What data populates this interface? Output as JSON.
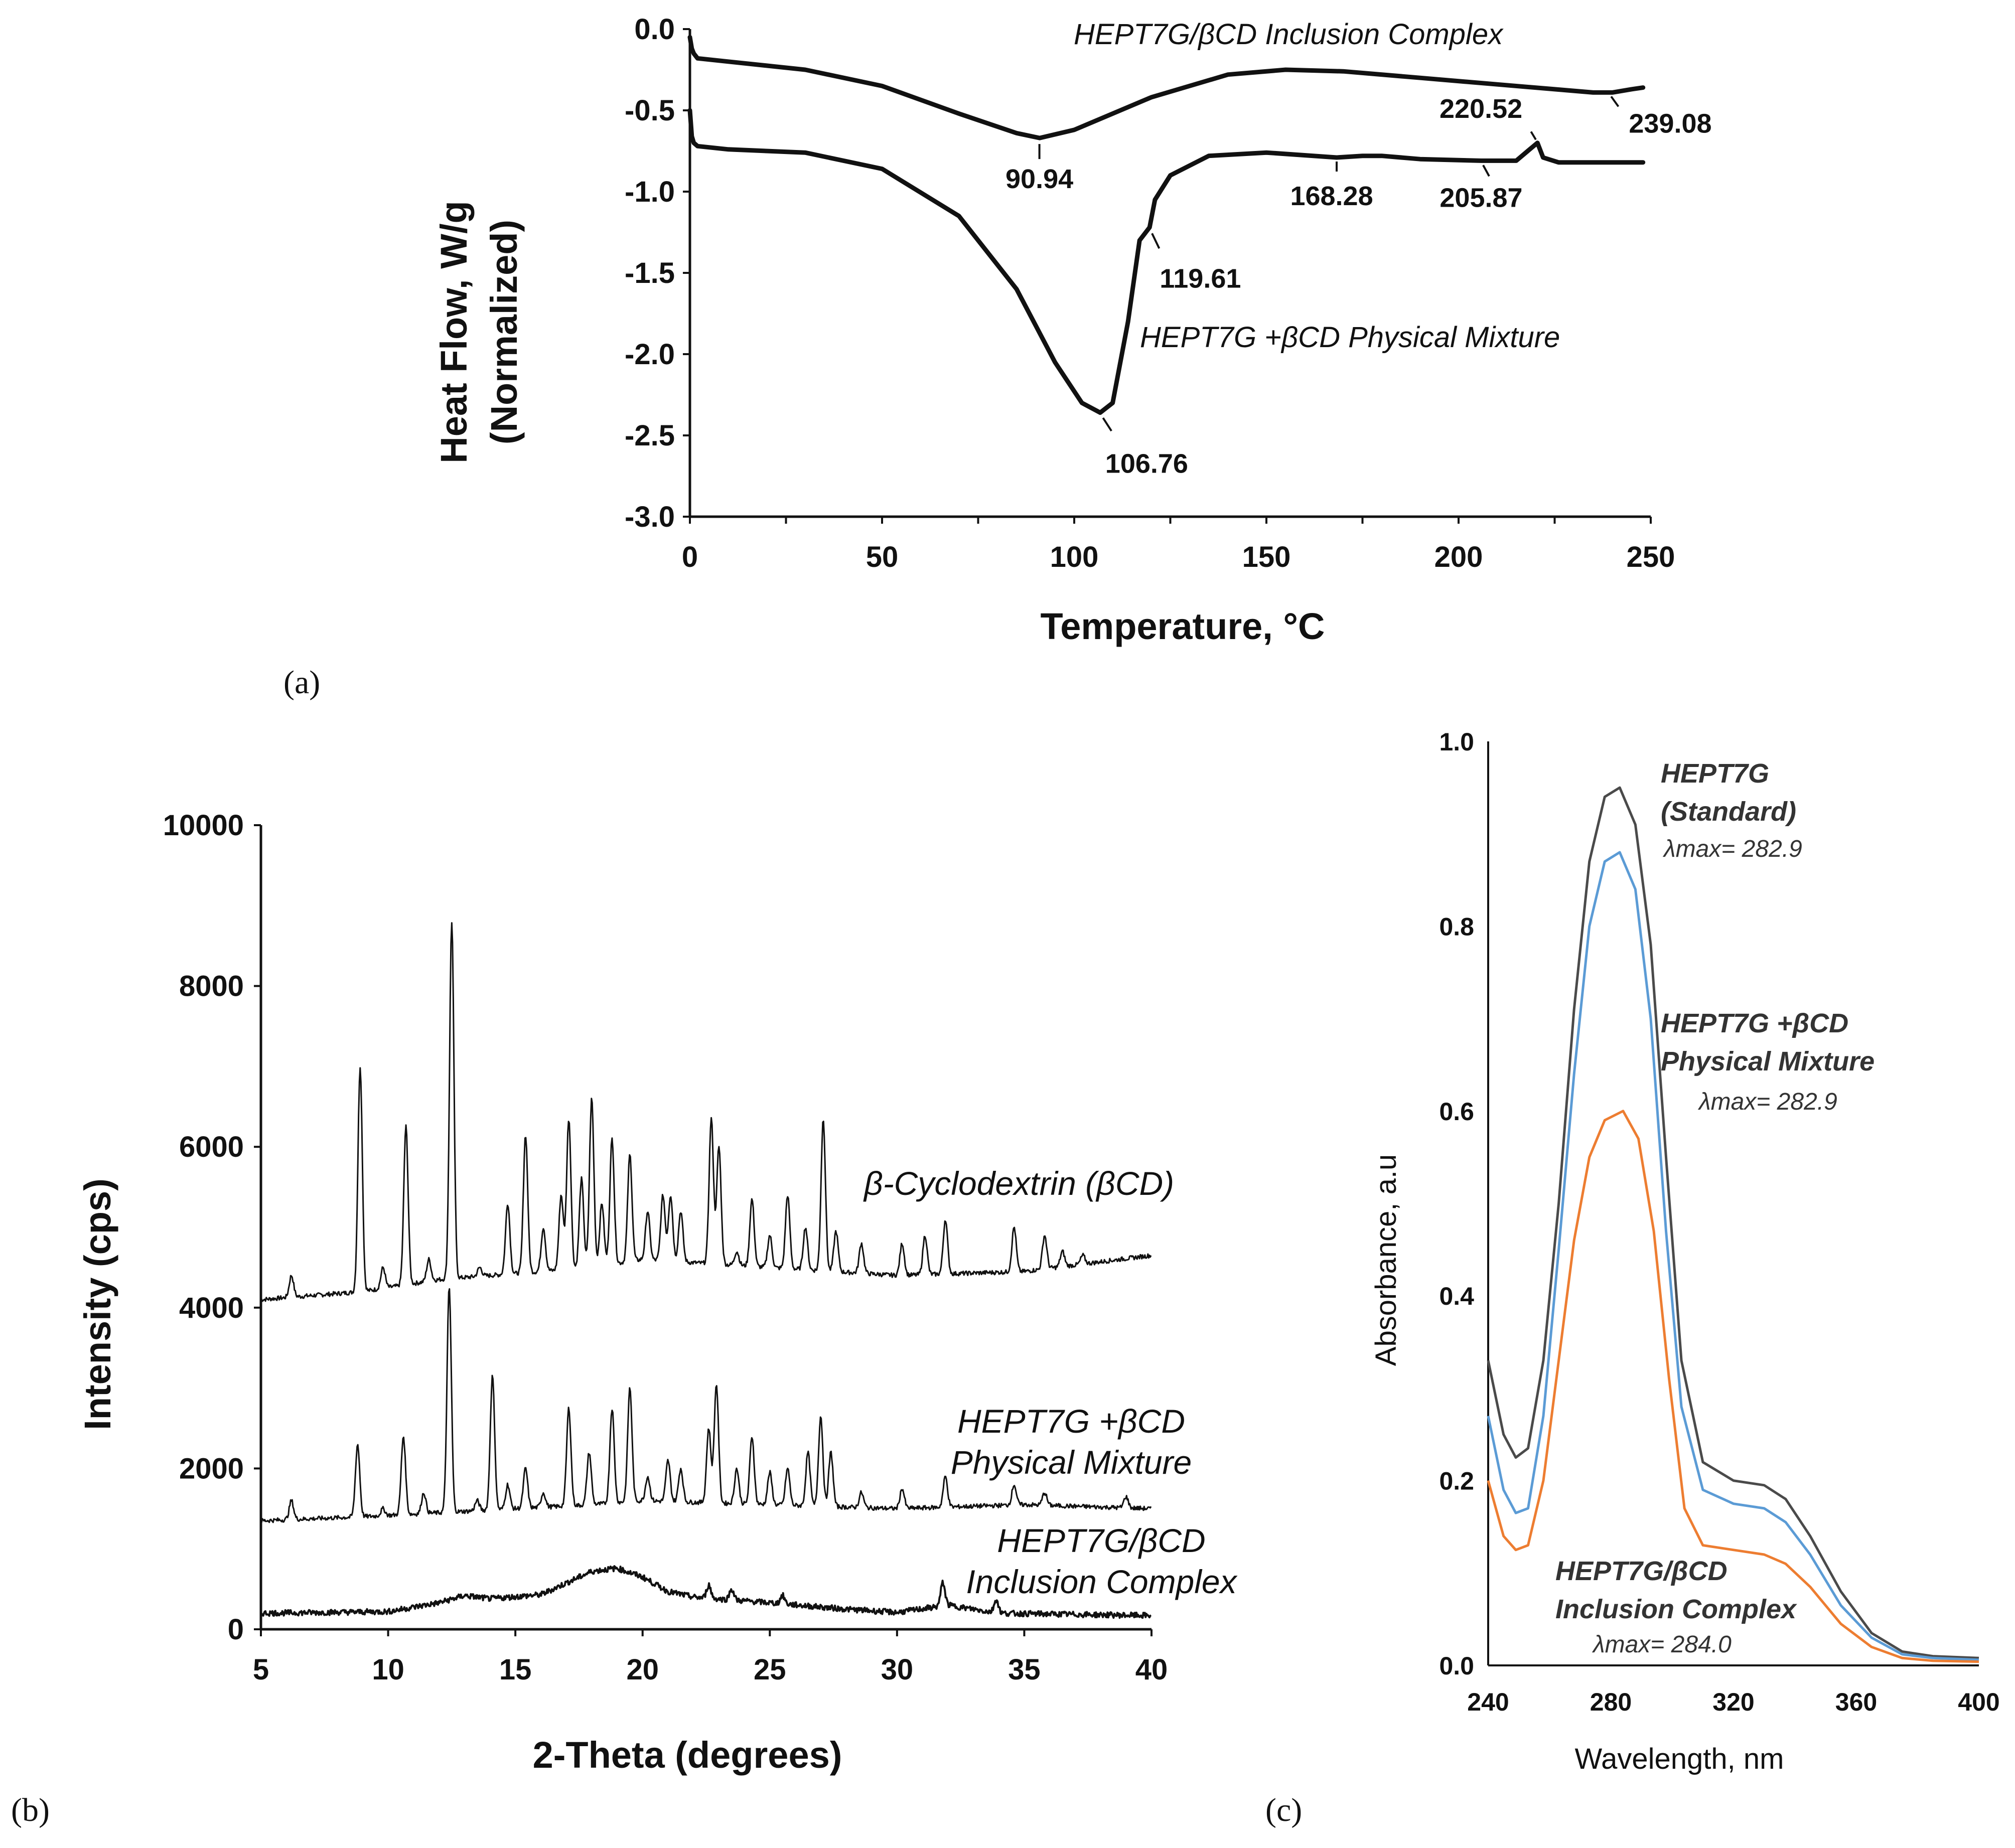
{
  "panels": {
    "a": "(a)",
    "b": "(b)",
    "c": "(c)"
  },
  "chart_data": [
    {
      "id": "a",
      "type": "line",
      "title": "",
      "xlabel": "Temperature, °C",
      "ylabel_lines": [
        "Heat Flow, W/g",
        "(Normalized)"
      ],
      "xlim": [
        0,
        250
      ],
      "ylim": [
        -3.0,
        0.0
      ],
      "xticks": [
        0,
        50,
        100,
        150,
        200,
        250
      ],
      "yticks": [
        0.0,
        -0.5,
        -1.0,
        -1.5,
        -2.0,
        -2.5,
        -3.0
      ],
      "xtick_labels": [
        "0",
        "50",
        "100",
        "150",
        "200",
        "250"
      ],
      "ytick_labels": [
        "0.0",
        "-0.5",
        "-1.0",
        "-1.5",
        "-2.0",
        "-2.5",
        "-3.0"
      ],
      "series": [
        {
          "name": "HEPT7G/βCD Inclusion Complex",
          "x": [
            0,
            0.5,
            1,
            2,
            10,
            30,
            50,
            70,
            85,
            91,
            100,
            120,
            140,
            155,
            170,
            190,
            210,
            225,
            235,
            240,
            245,
            248
          ],
          "y": [
            -0.05,
            -0.12,
            -0.15,
            -0.18,
            -0.2,
            -0.25,
            -0.35,
            -0.52,
            -0.64,
            -0.67,
            -0.62,
            -0.42,
            -0.28,
            -0.25,
            -0.26,
            -0.3,
            -0.34,
            -0.37,
            -0.39,
            -0.39,
            -0.37,
            -0.36
          ]
        },
        {
          "name": "HEPT7G + βCD Physical Mixture",
          "x": [
            0,
            0.5,
            1,
            2,
            10,
            30,
            50,
            70,
            85,
            95,
            102,
            106.76,
            110,
            114,
            117,
            119.61,
            121,
            125,
            135,
            150,
            168.28,
            175,
            180,
            190,
            205.87,
            215,
            218,
            220.52,
            222,
            226,
            235,
            248
          ],
          "y": [
            -0.5,
            -0.66,
            -0.7,
            -0.72,
            -0.74,
            -0.76,
            -0.86,
            -1.15,
            -1.6,
            -2.05,
            -2.3,
            -2.36,
            -2.3,
            -1.8,
            -1.3,
            -1.22,
            -1.05,
            -0.9,
            -0.78,
            -0.76,
            -0.79,
            -0.78,
            -0.78,
            -0.8,
            -0.81,
            -0.81,
            -0.75,
            -0.7,
            -0.79,
            -0.82,
            -0.82,
            -0.82
          ]
        }
      ],
      "annotations": [
        {
          "x": 90.94,
          "y": -0.67,
          "label": "90.94"
        },
        {
          "x": 106.76,
          "y": -2.36,
          "label": "106.76"
        },
        {
          "x": 119.61,
          "y": -1.22,
          "label": "119.61"
        },
        {
          "x": 168.28,
          "y": -0.79,
          "label": "168.28"
        },
        {
          "x": 205.87,
          "y": -0.81,
          "label": "205.87"
        },
        {
          "x": 220.52,
          "y": -0.7,
          "label": "220.52"
        },
        {
          "x": 239.08,
          "y": -0.39,
          "label": "239.08"
        }
      ],
      "series_labels": [
        "HEPT7G/βCD Inclusion Complex",
        "HEPT7G +βCD Physical Mixture"
      ]
    },
    {
      "id": "b",
      "type": "line",
      "title": "",
      "xlabel": "2-Theta (degrees)",
      "ylabel": "Intensity (cps)",
      "xlim": [
        5,
        40
      ],
      "ylim": [
        0,
        10000
      ],
      "xticks": [
        5,
        10,
        15,
        20,
        25,
        30,
        35,
        40
      ],
      "yticks": [
        0,
        2000,
        4000,
        6000,
        8000,
        10000
      ],
      "xtick_labels": [
        "5",
        "10",
        "15",
        "20",
        "25",
        "30",
        "35",
        "40"
      ],
      "ytick_labels": [
        "0",
        "2000",
        "4000",
        "6000",
        "8000",
        "10000"
      ],
      "series": [
        {
          "name": "β-Cyclodextrin (βCD)",
          "baseline": [
            [
              5,
              4100
            ],
            [
              9,
              4200
            ],
            [
              12,
              4350
            ],
            [
              18,
              4500
            ],
            [
              20,
              4600
            ],
            [
              25,
              4500
            ],
            [
              30,
              4400
            ],
            [
              35,
              4450
            ],
            [
              40,
              4650
            ]
          ],
          "peaks": [
            [
              6.2,
              4400
            ],
            [
              8.9,
              7000
            ],
            [
              9.8,
              4500
            ],
            [
              10.7,
              6250
            ],
            [
              11.6,
              4600
            ],
            [
              12.5,
              8800
            ],
            [
              13.6,
              4500
            ],
            [
              14.7,
              5300
            ],
            [
              15.4,
              6150
            ],
            [
              16.1,
              5000
            ],
            [
              16.8,
              5400
            ],
            [
              17.1,
              6350
            ],
            [
              17.6,
              5600
            ],
            [
              18.0,
              6600
            ],
            [
              18.4,
              5300
            ],
            [
              18.8,
              6100
            ],
            [
              19.5,
              5900
            ],
            [
              20.2,
              5200
            ],
            [
              20.8,
              5400
            ],
            [
              21.1,
              5400
            ],
            [
              21.5,
              5200
            ],
            [
              22.7,
              6350
            ],
            [
              23.0,
              6000
            ],
            [
              23.7,
              4700
            ],
            [
              24.3,
              5350
            ],
            [
              25.0,
              4900
            ],
            [
              25.7,
              5400
            ],
            [
              26.4,
              5000
            ],
            [
              27.1,
              6350
            ],
            [
              27.6,
              4950
            ],
            [
              28.6,
              4800
            ],
            [
              30.2,
              4800
            ],
            [
              31.1,
              4900
            ],
            [
              31.9,
              5100
            ],
            [
              34.6,
              5000
            ],
            [
              35.8,
              4900
            ],
            [
              36.5,
              4700
            ],
            [
              37.3,
              4650
            ]
          ]
        },
        {
          "name": "HEPT7G +βCD Physical Mixture",
          "baseline": [
            [
              5,
              1350
            ],
            [
              9,
              1400
            ],
            [
              12,
              1450
            ],
            [
              18,
              1550
            ],
            [
              20,
              1600
            ],
            [
              25,
              1550
            ],
            [
              30,
              1500
            ],
            [
              35,
              1550
            ],
            [
              40,
              1500
            ]
          ],
          "peaks": [
            [
              6.2,
              1600
            ],
            [
              8.8,
              2300
            ],
            [
              9.8,
              1500
            ],
            [
              10.6,
              2400
            ],
            [
              11.4,
              1700
            ],
            [
              12.4,
              4250
            ],
            [
              13.5,
              1600
            ],
            [
              14.1,
              3150
            ],
            [
              14.7,
              1800
            ],
            [
              15.4,
              2000
            ],
            [
              16.1,
              1700
            ],
            [
              17.1,
              2750
            ],
            [
              17.9,
              2200
            ],
            [
              18.8,
              2750
            ],
            [
              19.5,
              3000
            ],
            [
              20.2,
              1900
            ],
            [
              21.0,
              2100
            ],
            [
              21.5,
              2000
            ],
            [
              22.6,
              2500
            ],
            [
              22.9,
              3050
            ],
            [
              23.7,
              2000
            ],
            [
              24.3,
              2400
            ],
            [
              25.0,
              1950
            ],
            [
              25.7,
              2000
            ],
            [
              26.5,
              2200
            ],
            [
              27.0,
              2650
            ],
            [
              27.4,
              2200
            ],
            [
              28.6,
              1700
            ],
            [
              30.2,
              1750
            ],
            [
              31.9,
              1900
            ],
            [
              34.6,
              1800
            ],
            [
              35.8,
              1700
            ],
            [
              39.0,
              1650
            ]
          ]
        },
        {
          "name": "HEPT7G/βCD Inclusion Complex",
          "baseline": [
            [
              5,
              200
            ],
            [
              10,
              220
            ],
            [
              12,
              330
            ],
            [
              13,
              420
            ],
            [
              14,
              380
            ],
            [
              16,
              430
            ],
            [
              18,
              720
            ],
            [
              19,
              760
            ],
            [
              20,
              650
            ],
            [
              21,
              470
            ],
            [
              22,
              400
            ],
            [
              25,
              330
            ],
            [
              28,
              250
            ],
            [
              30,
              210
            ],
            [
              32,
              300
            ],
            [
              34,
              200
            ],
            [
              40,
              170
            ]
          ],
          "peaks": [
            [
              22.6,
              550
            ],
            [
              23.5,
              500
            ],
            [
              25.5,
              420
            ],
            [
              31.8,
              580
            ],
            [
              33.9,
              370
            ]
          ]
        }
      ],
      "series_labels": [
        "β-Cyclodextrin (βCD)",
        "HEPT7G +βCD",
        "Physical Mixture",
        "HEPT7G/βCD",
        "Inclusion Complex"
      ]
    },
    {
      "id": "c",
      "type": "line",
      "title": "",
      "xlabel": "Wavelength, nm",
      "ylabel": "Absorbance, a.u",
      "xlim": [
        240,
        400
      ],
      "ylim": [
        0.0,
        1.0
      ],
      "xticks": [
        240,
        280,
        320,
        360,
        400
      ],
      "yticks": [
        0.0,
        0.2,
        0.4,
        0.6,
        0.8,
        1.0
      ],
      "xtick_labels": [
        "240",
        "280",
        "320",
        "360",
        "400"
      ],
      "ytick_labels": [
        "0.0",
        "0.2",
        "0.4",
        "0.6",
        "0.8",
        "1.0"
      ],
      "series": [
        {
          "name": "HEPT7G (Standard)",
          "color": "#4a4a4a",
          "lambda_max": 282.9,
          "x": [
            240,
            245,
            249,
            253,
            258,
            263,
            268,
            273,
            278,
            282.9,
            288,
            293,
            298,
            303,
            310,
            320,
            330,
            337,
            345,
            355,
            365,
            375,
            385,
            400
          ],
          "y": [
            0.33,
            0.25,
            0.225,
            0.235,
            0.33,
            0.5,
            0.71,
            0.87,
            0.94,
            0.95,
            0.91,
            0.78,
            0.55,
            0.33,
            0.22,
            0.2,
            0.195,
            0.18,
            0.14,
            0.08,
            0.035,
            0.015,
            0.01,
            0.008
          ]
        },
        {
          "name": "HEPT7G +βCD Physical Mixture",
          "color": "#5b9bd5",
          "lambda_max": 282.9,
          "x": [
            240,
            245,
            249,
            253,
            258,
            263,
            268,
            273,
            278,
            282.9,
            288,
            293,
            298,
            303,
            310,
            320,
            330,
            337,
            345,
            355,
            365,
            375,
            385,
            400
          ],
          "y": [
            0.27,
            0.19,
            0.165,
            0.17,
            0.27,
            0.45,
            0.64,
            0.8,
            0.87,
            0.88,
            0.84,
            0.7,
            0.47,
            0.28,
            0.19,
            0.175,
            0.17,
            0.155,
            0.12,
            0.065,
            0.03,
            0.012,
            0.008,
            0.006
          ]
        },
        {
          "name": "HEPT7G/βCD Inclusion Complex",
          "color": "#ed7d31",
          "lambda_max": 284.0,
          "x": [
            240,
            245,
            249,
            253,
            258,
            263,
            268,
            273,
            278,
            284.0,
            289,
            294,
            299,
            304,
            310,
            320,
            330,
            337,
            345,
            355,
            365,
            375,
            385,
            400
          ],
          "y": [
            0.2,
            0.14,
            0.125,
            0.13,
            0.2,
            0.33,
            0.46,
            0.55,
            0.59,
            0.6,
            0.57,
            0.47,
            0.31,
            0.17,
            0.13,
            0.125,
            0.12,
            0.11,
            0.085,
            0.045,
            0.02,
            0.008,
            0.005,
            0.004
          ]
        }
      ],
      "series_labels": [
        {
          "name_lines": [
            "HEPT7G",
            "(Standard)"
          ],
          "lambda_label": "λmax= 282.9"
        },
        {
          "name_lines": [
            "HEPT7G +βCD",
            "Physical Mixture"
          ],
          "lambda_label": "λmax= 282.9"
        },
        {
          "name_lines": [
            "HEPT7G/βCD",
            "Inclusion Complex"
          ],
          "lambda_label": "λmax= 284.0"
        }
      ]
    }
  ]
}
